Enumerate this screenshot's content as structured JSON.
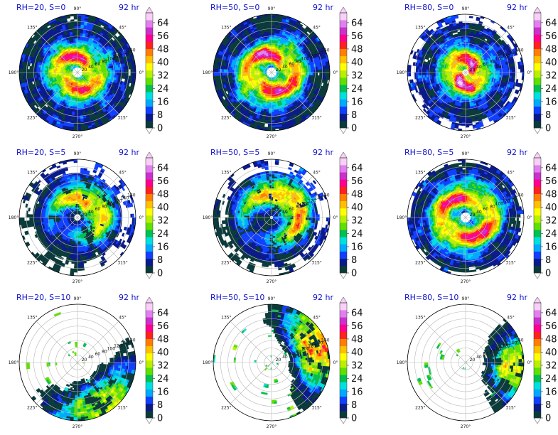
{
  "figure": {
    "angle_ticks": [
      "0°",
      "45°",
      "90°",
      "135°",
      "180°",
      "225°",
      "270°",
      "315°"
    ],
    "radial_ticks": [
      "20",
      "40",
      "60",
      "80",
      "100",
      "120",
      "140",
      "160"
    ],
    "colorbar_ticks": [
      "0",
      "8",
      "16",
      "24",
      "32",
      "40",
      "48",
      "56",
      "64"
    ],
    "colormap": [
      "#ffffff",
      "#0a3a3a",
      "#0a1a8a",
      "#1040ff",
      "#00aaff",
      "#00e0e0",
      "#00c050",
      "#60e000",
      "#b8f000",
      "#ffff00",
      "#ffc000",
      "#ff8000",
      "#ff2020",
      "#ff0090",
      "#cc30cc",
      "#e080f0",
      "#f8d0f8"
    ]
  },
  "chart_data": [
    {
      "type": "heatmap",
      "title": "RH=20, S=0",
      "time_label": "92 hr",
      "rmax": 160,
      "rlim": [
        0,
        160
      ],
      "colorbar": {
        "range": [
          0,
          70
        ],
        "ticks": [
          0,
          8,
          16,
          24,
          32,
          40,
          48,
          56,
          64
        ]
      },
      "field": {
        "pattern": "ring",
        "eye_radius": 14,
        "peak_radius": 45,
        "peak_value": 50,
        "coverage": 1.0
      }
    },
    {
      "type": "heatmap",
      "title": "RH=50, S=0",
      "time_label": "92 hr",
      "rmax": 160,
      "rlim": [
        0,
        160
      ],
      "colorbar": {
        "range": [
          0,
          70
        ],
        "ticks": [
          0,
          8,
          16,
          24,
          32,
          40,
          48,
          56,
          64
        ]
      },
      "field": {
        "pattern": "ring",
        "eye_radius": 12,
        "peak_radius": 55,
        "peak_value": 52,
        "coverage": 1.0
      }
    },
    {
      "type": "heatmap",
      "title": "RH=80, S=0",
      "time_label": "92 hr",
      "rmax": 160,
      "rlim": [
        0,
        160
      ],
      "colorbar": {
        "range": [
          0,
          70
        ],
        "ticks": [
          0,
          8,
          16,
          24,
          32,
          40,
          48,
          56,
          64
        ]
      },
      "field": {
        "pattern": "ring",
        "eye_radius": 10,
        "peak_radius": 32,
        "peak_value": 56,
        "coverage": 0.85
      }
    },
    {
      "type": "heatmap",
      "title": "RH=20, S=5",
      "time_label": "92 hr",
      "rmax": 160,
      "rlim": [
        0,
        160
      ],
      "colorbar": {
        "range": [
          0,
          70
        ],
        "ticks": [
          0,
          8,
          16,
          24,
          32,
          40,
          48,
          56,
          64
        ]
      },
      "field": {
        "pattern": "sheared",
        "eye_radius": 8,
        "peak_radius": 60,
        "peak_value": 42,
        "coverage": 0.75
      }
    },
    {
      "type": "heatmap",
      "title": "RH=50, S=5",
      "time_label": "92 hr",
      "rmax": 160,
      "rlim": [
        0,
        160
      ],
      "colorbar": {
        "range": [
          0,
          70
        ],
        "ticks": [
          0,
          8,
          16,
          24,
          32,
          40,
          48,
          56,
          64
        ]
      },
      "field": {
        "pattern": "sheared",
        "eye_radius": 6,
        "peak_radius": 70,
        "peak_value": 46,
        "coverage": 0.8
      }
    },
    {
      "type": "heatmap",
      "title": "RH=80, S=5",
      "time_label": "92 hr",
      "rmax": 160,
      "rlim": [
        0,
        160
      ],
      "colorbar": {
        "range": [
          0,
          70
        ],
        "ticks": [
          0,
          8,
          16,
          24,
          32,
          40,
          48,
          56,
          64
        ]
      },
      "field": {
        "pattern": "ring",
        "eye_radius": 12,
        "peak_radius": 60,
        "peak_value": 50,
        "coverage": 0.95
      }
    },
    {
      "type": "heatmap",
      "title": "RH=20, S=10",
      "time_label": "92 hr",
      "rmax": 160,
      "rlim": [
        0,
        160
      ],
      "colorbar": {
        "range": [
          0,
          70
        ],
        "ticks": [
          0,
          8,
          16,
          24,
          32,
          40,
          48,
          56,
          64
        ]
      },
      "field": {
        "pattern": "sector",
        "sector_center_deg": 300,
        "sector_width_deg": 80,
        "peak_value": 40,
        "coverage": 0.35
      }
    },
    {
      "type": "heatmap",
      "title": "RH=50, S=10",
      "time_label": "92 hr",
      "rmax": 160,
      "rlim": [
        0,
        160
      ],
      "colorbar": {
        "range": [
          0,
          70
        ],
        "ticks": [
          0,
          8,
          16,
          24,
          32,
          40,
          48,
          56,
          64
        ]
      },
      "field": {
        "pattern": "sector",
        "sector_center_deg": 20,
        "sector_width_deg": 70,
        "peak_value": 50,
        "coverage": 0.4
      }
    },
    {
      "type": "heatmap",
      "title": "RH=80, S=10",
      "time_label": "92 hr",
      "rmax": 160,
      "rlim": [
        0,
        160
      ],
      "colorbar": {
        "range": [
          0,
          70
        ],
        "ticks": [
          0,
          8,
          16,
          24,
          32,
          40,
          48,
          56,
          64
        ]
      },
      "field": {
        "pattern": "sector",
        "sector_center_deg": 355,
        "sector_width_deg": 50,
        "peak_value": 44,
        "coverage": 0.3
      }
    }
  ]
}
